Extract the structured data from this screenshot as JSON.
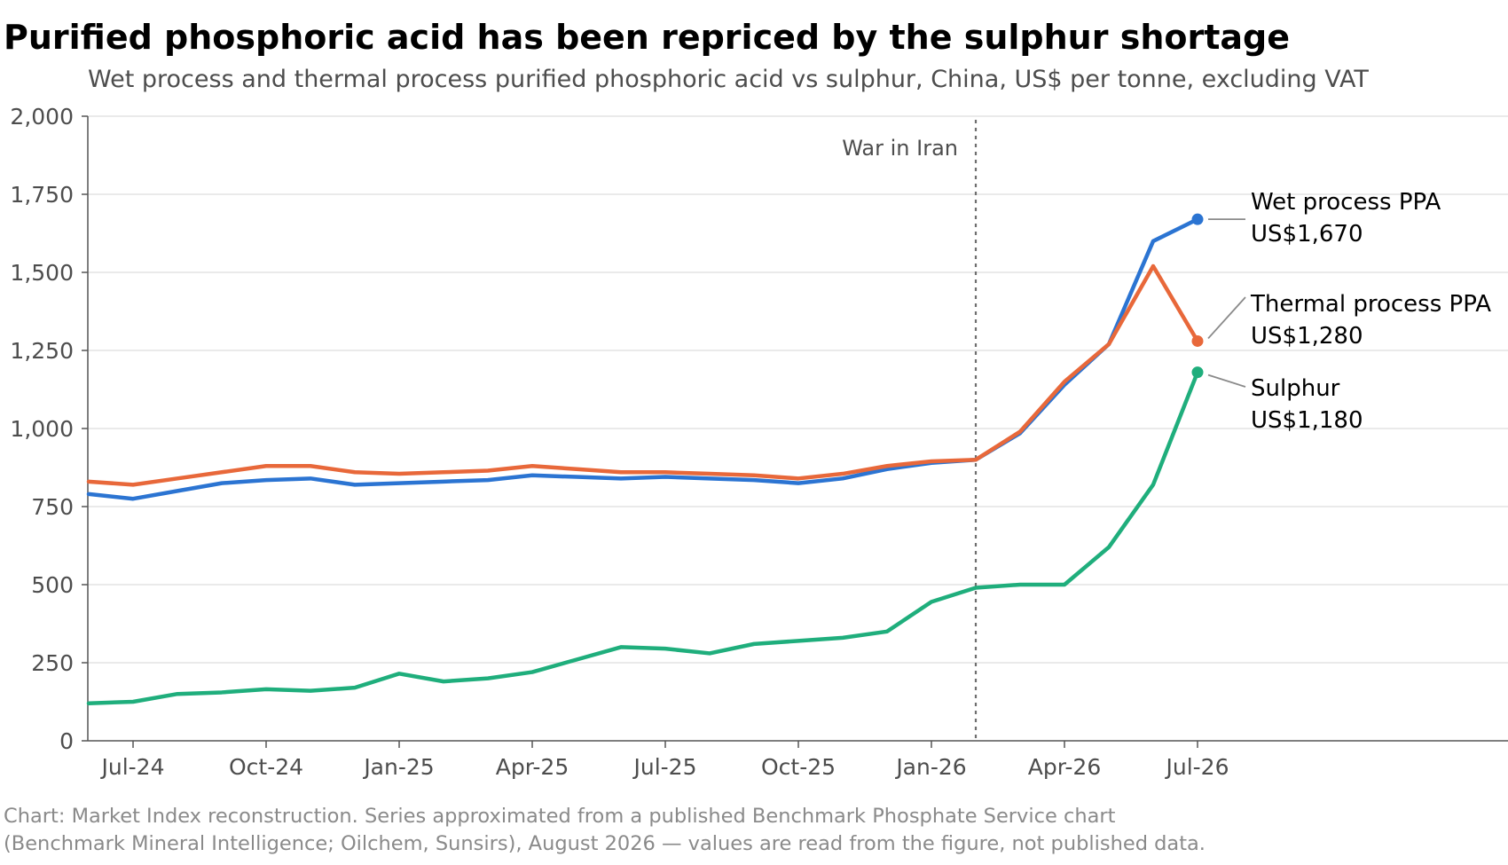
{
  "title": "Purified phosphoric acid has been repriced by the sulphur shortage",
  "subtitle": "Wet process and thermal process purified phosphoric acid vs sulphur, China, US$ per tonne, excluding VAT",
  "source": {
    "line1": "Chart: Market Index reconstruction. Series approximated from a published Benchmark Phosphate Service chart",
    "line2": "(Benchmark Mineral Intelligence; Oilchem, Sunsirs), August 2026 — values are read from the figure, not published data."
  },
  "chart_data": {
    "type": "line",
    "x": [
      "Jun-24",
      "Jul-24",
      "Aug-24",
      "Sep-24",
      "Oct-24",
      "Nov-24",
      "Dec-24",
      "Jan-25",
      "Feb-25",
      "Mar-25",
      "Apr-25",
      "May-25",
      "Jun-25",
      "Jul-25",
      "Aug-25",
      "Sep-25",
      "Oct-25",
      "Nov-25",
      "Dec-25",
      "Jan-26",
      "Feb-26",
      "Mar-26",
      "Apr-26",
      "May-26",
      "Jun-26",
      "Jul-26"
    ],
    "xticks": [
      "Jul-24",
      "Oct-24",
      "Jan-25",
      "Apr-25",
      "Jul-25",
      "Oct-25",
      "Jan-26",
      "Apr-26",
      "Jul-26"
    ],
    "yticks": [
      "0",
      "250",
      "500",
      "750",
      "1,000",
      "1,250",
      "1,500",
      "1,750",
      "2,000"
    ],
    "ylim": [
      0,
      2000
    ],
    "grid": "horizontal",
    "series": [
      {
        "name": "Wet process PPA",
        "color": "#2b74d2",
        "values": [
          790,
          775,
          800,
          825,
          835,
          840,
          820,
          825,
          830,
          835,
          850,
          845,
          840,
          845,
          840,
          835,
          825,
          840,
          870,
          890,
          900,
          985,
          1140,
          1270,
          1600,
          1670
        ],
        "label_name": "Wet process PPA",
        "label_value": "US$1,670"
      },
      {
        "name": "Thermal process PPA",
        "color": "#e8683a",
        "values": [
          830,
          820,
          840,
          860,
          880,
          880,
          860,
          855,
          860,
          865,
          880,
          870,
          860,
          860,
          855,
          850,
          840,
          855,
          880,
          895,
          900,
          990,
          1150,
          1270,
          1520,
          1280
        ],
        "label_name": "Thermal process PPA",
        "label_value": "US$1,280"
      },
      {
        "name": "Sulphur",
        "color": "#1fae7c",
        "values": [
          120,
          125,
          150,
          155,
          165,
          160,
          170,
          215,
          190,
          200,
          220,
          260,
          300,
          295,
          280,
          310,
          320,
          330,
          350,
          445,
          490,
          500,
          500,
          620,
          820,
          1180
        ],
        "label_name": "Sulphur",
        "label_value": "US$1,180"
      }
    ],
    "annotation": {
      "text": "War in Iran",
      "x": "Feb-26"
    }
  }
}
